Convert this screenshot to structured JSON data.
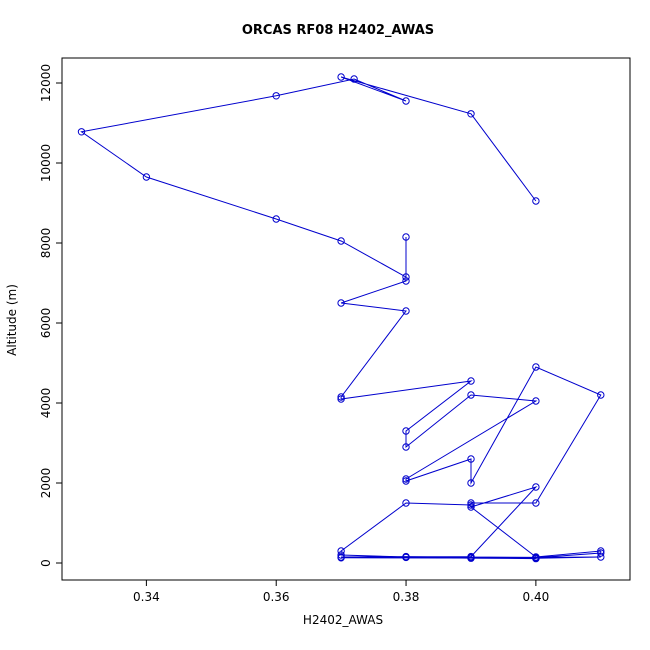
{
  "chart_data": {
    "type": "line",
    "title": "ORCAS RF08 H2402_AWAS",
    "xlabel": "H2402_AWAS",
    "ylabel": "Altitude (m)",
    "series_color": "#0000cd",
    "marker": "open-circle",
    "grid": false,
    "xlim": [
      0.327,
      0.4145
    ],
    "ylim": [
      -425,
      12625
    ],
    "xticks": [
      0.34,
      0.36,
      0.38,
      0.4
    ],
    "xtick_labels": [
      "0.34",
      "0.36",
      "0.38",
      "0.40"
    ],
    "yticks": [
      0,
      2000,
      4000,
      6000,
      8000,
      10000,
      12000
    ],
    "ytick_labels": [
      "0",
      "2000",
      "4000",
      "6000",
      "8000",
      "10000",
      "12000"
    ],
    "points": [
      [
        0.4,
        9050
      ],
      [
        0.39,
        11230
      ],
      [
        0.37,
        12150
      ],
      [
        0.38,
        11550
      ],
      [
        0.372,
        12100
      ],
      [
        0.36,
        11680
      ],
      [
        0.33,
        10780
      ],
      [
        0.34,
        9650
      ],
      [
        0.36,
        8600
      ],
      [
        0.37,
        8050
      ],
      [
        0.38,
        7150
      ],
      [
        0.38,
        8150
      ],
      [
        0.38,
        7050
      ],
      [
        0.37,
        6500
      ],
      [
        0.38,
        6300
      ],
      [
        0.37,
        4150
      ],
      [
        0.37,
        4100
      ],
      [
        0.39,
        4550
      ],
      [
        0.38,
        3300
      ],
      [
        0.38,
        2900
      ],
      [
        0.39,
        4200
      ],
      [
        0.4,
        4050
      ],
      [
        0.38,
        2100
      ],
      [
        0.38,
        2050
      ],
      [
        0.39,
        2600
      ],
      [
        0.39,
        2000
      ],
      [
        0.4,
        4900
      ],
      [
        0.41,
        4200
      ],
      [
        0.4,
        1500
      ],
      [
        0.39,
        1500
      ],
      [
        0.39,
        1450
      ],
      [
        0.38,
        1500
      ],
      [
        0.37,
        300
      ],
      [
        0.37,
        200
      ],
      [
        0.38,
        150
      ],
      [
        0.39,
        160
      ],
      [
        0.4,
        1900
      ],
      [
        0.39,
        1400
      ],
      [
        0.4,
        150
      ],
      [
        0.41,
        300
      ],
      [
        0.41,
        250
      ],
      [
        0.4,
        130
      ],
      [
        0.39,
        140
      ],
      [
        0.37,
        150
      ],
      [
        0.38,
        160
      ],
      [
        0.4,
        140
      ],
      [
        0.39,
        130
      ],
      [
        0.41,
        150
      ],
      [
        0.4,
        120
      ],
      [
        0.37,
        130
      ],
      [
        0.38,
        140
      ],
      [
        0.39,
        120
      ],
      [
        0.4,
        110
      ]
    ]
  },
  "layout_hints": {
    "legend": "none",
    "box": "full frame around plot area"
  }
}
